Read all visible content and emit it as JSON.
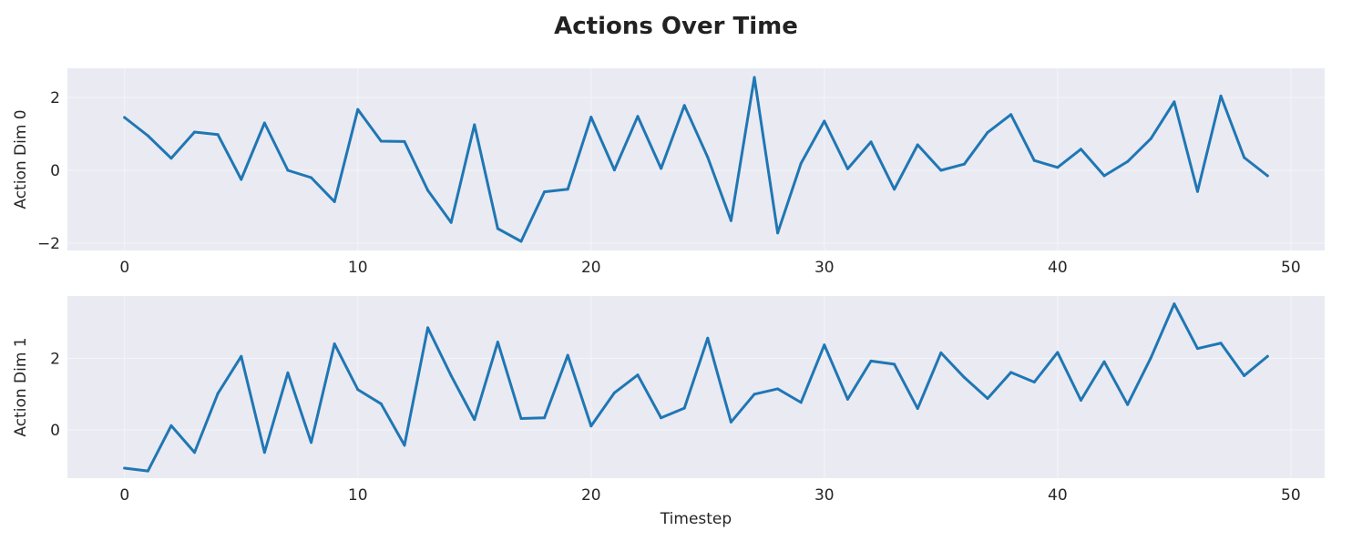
{
  "figure": {
    "title": "Actions Over Time"
  },
  "chart_data": [
    {
      "type": "line",
      "title": "",
      "xlabel": "",
      "ylabel": "Action Dim 0",
      "xlim": [
        -2.45,
        51.45
      ],
      "ylim": [
        -2.2,
        2.8
      ],
      "xticks": [
        0,
        10,
        20,
        30,
        40,
        50
      ],
      "yticks": [
        -2,
        0,
        2
      ],
      "ytick_labels": [
        "−2",
        "0",
        "2"
      ],
      "grid": true,
      "legend": "none",
      "background": "#eaeaf2",
      "series": [
        {
          "color": "#1f77b4",
          "x": [
            0,
            1,
            2,
            3,
            4,
            5,
            6,
            7,
            8,
            9,
            10,
            11,
            12,
            13,
            14,
            15,
            16,
            17,
            18,
            19,
            20,
            21,
            22,
            23,
            24,
            25,
            26,
            27,
            28,
            29,
            30,
            31,
            32,
            33,
            34,
            35,
            36,
            37,
            38,
            39,
            40,
            41,
            42,
            43,
            44,
            45,
            46,
            47,
            48,
            49
          ],
          "values": [
            1.45,
            0.95,
            0.33,
            1.05,
            0.98,
            -0.25,
            1.3,
            0.0,
            -0.2,
            -0.86,
            1.67,
            0.8,
            0.79,
            -0.55,
            -1.43,
            1.25,
            -1.6,
            -1.95,
            -0.59,
            -0.52,
            1.46,
            0.01,
            1.48,
            0.05,
            1.78,
            0.36,
            -1.38,
            2.55,
            -1.72,
            0.19,
            1.35,
            0.04,
            0.78,
            -0.52,
            0.7,
            0.0,
            0.17,
            1.04,
            1.53,
            0.27,
            0.08,
            0.58,
            -0.15,
            0.24,
            0.87,
            1.88,
            -0.58,
            2.04,
            0.35,
            -0.15
          ]
        }
      ]
    },
    {
      "type": "line",
      "title": "",
      "xlabel": "Timestep",
      "ylabel": "Action Dim 1",
      "xlim": [
        -2.45,
        51.45
      ],
      "ylim": [
        -1.35,
        3.75
      ],
      "xticks": [
        0,
        10,
        20,
        30,
        40,
        50
      ],
      "yticks": [
        0,
        2
      ],
      "ytick_labels": [
        "0",
        "2"
      ],
      "grid": true,
      "legend": "none",
      "background": "#eaeaf2",
      "series": [
        {
          "color": "#1f77b4",
          "x": [
            0,
            1,
            2,
            3,
            4,
            5,
            6,
            7,
            8,
            9,
            10,
            11,
            12,
            13,
            14,
            15,
            16,
            17,
            18,
            19,
            20,
            21,
            22,
            23,
            24,
            25,
            26,
            27,
            28,
            29,
            30,
            31,
            32,
            33,
            34,
            35,
            36,
            37,
            38,
            39,
            40,
            41,
            42,
            43,
            44,
            45,
            46,
            47,
            48,
            49
          ],
          "values": [
            -1.07,
            -1.15,
            0.12,
            -0.63,
            1.02,
            2.06,
            -0.63,
            1.6,
            -0.35,
            2.41,
            1.13,
            0.73,
            -0.43,
            2.86,
            1.52,
            0.29,
            2.46,
            0.32,
            0.34,
            2.09,
            0.11,
            1.04,
            1.54,
            0.34,
            0.61,
            2.57,
            0.22,
            1.0,
            1.15,
            0.77,
            2.38,
            0.86,
            1.93,
            1.84,
            0.6,
            2.16,
            1.47,
            0.88,
            1.61,
            1.34,
            2.17,
            0.83,
            1.91,
            0.71,
            2.02,
            3.53,
            2.28,
            2.43,
            1.52,
            2.06
          ]
        }
      ]
    }
  ]
}
